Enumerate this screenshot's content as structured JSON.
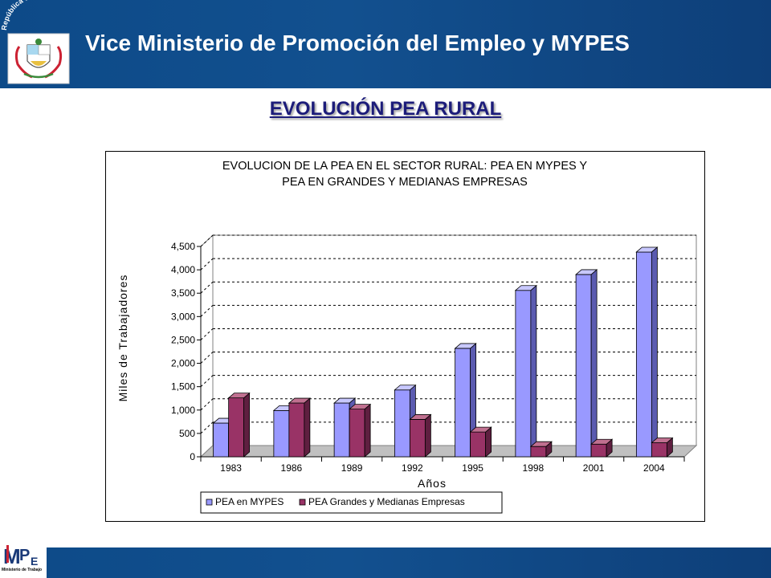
{
  "header": {
    "title": "Vice Ministerio de Promoción del Empleo y  MYPES",
    "seal_text": "República del Perú"
  },
  "section_title": "EVOLUCIÓN PEA RURAL",
  "footer": {
    "logo_text": "Ministerio de Trabajo"
  },
  "colors": {
    "header_blue": "#12508f",
    "section_title": "#1c1c7a",
    "series_mypes": "#9999ff",
    "series_grandes": "#993366",
    "floor": "#c0c0c0"
  },
  "chart_data": {
    "type": "bar",
    "title_line1": "EVOLUCION DE LA PEA EN EL SECTOR RURAL: PEA EN MYPES Y",
    "title_line2": "PEA EN GRANDES Y MEDIANAS EMPRESAS",
    "xlabel": "Años",
    "ylabel": "Miles de Trabajadores",
    "categories": [
      "1983",
      "1986",
      "1989",
      "1992",
      "1995",
      "1998",
      "2001",
      "2004"
    ],
    "series": [
      {
        "name": "PEA en MYPES",
        "values": [
          720,
          990,
          1150,
          1430,
          2320,
          3560,
          3900,
          4380
        ]
      },
      {
        "name": "PEA Grandes y Medianas Empresas",
        "values": [
          1260,
          1150,
          1020,
          800,
          530,
          220,
          270,
          300
        ]
      }
    ],
    "ylim": [
      0,
      4500
    ],
    "yticks": [
      "0",
      "500",
      "1,000",
      "1,500",
      "2,000",
      "2,500",
      "3,000",
      "3,500",
      "4,000",
      "4,500"
    ],
    "grid": true,
    "legend": "bottom",
    "three_d": true
  }
}
